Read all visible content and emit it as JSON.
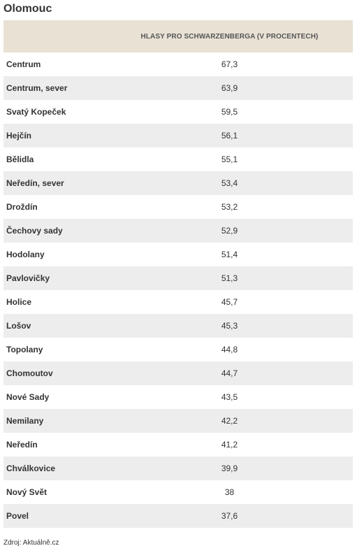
{
  "title": "Olomouc",
  "chart_data": {
    "type": "table",
    "columns": [
      "",
      "HLASY PRO SCHWARZENBERGA (V PROCENTECH)"
    ],
    "rows": [
      {
        "name": "Centrum",
        "value": "67,3"
      },
      {
        "name": "Centrum, sever",
        "value": "63,9"
      },
      {
        "name": "Svatý Kopeček",
        "value": "59,5"
      },
      {
        "name": "Hejčín",
        "value": "56,1"
      },
      {
        "name": "Bělidla",
        "value": "55,1"
      },
      {
        "name": "Neředín, sever",
        "value": "53,4"
      },
      {
        "name": "Droždín",
        "value": "53,2"
      },
      {
        "name": "Čechovy sady",
        "value": "52,9"
      },
      {
        "name": "Hodolany",
        "value": "51,4"
      },
      {
        "name": "Pavlovičky",
        "value": "51,3"
      },
      {
        "name": "Holice",
        "value": "45,7"
      },
      {
        "name": "Lošov",
        "value": "45,3"
      },
      {
        "name": "Topolany",
        "value": "44,8"
      },
      {
        "name": "Chomoutov",
        "value": "44,7"
      },
      {
        "name": "Nové Sady",
        "value": "43,5"
      },
      {
        "name": "Nemilany",
        "value": "42,2"
      },
      {
        "name": "Neředín",
        "value": "41,2"
      },
      {
        "name": "Chválkovice",
        "value": "39,9"
      },
      {
        "name": "Nový Svět",
        "value": "38"
      },
      {
        "name": "Povel",
        "value": "37,6"
      }
    ]
  },
  "source": "Zdroj: Aktuálně.cz",
  "colors": {
    "header_bg": "#e8e1d4",
    "stripe_bg": "#ededed"
  }
}
